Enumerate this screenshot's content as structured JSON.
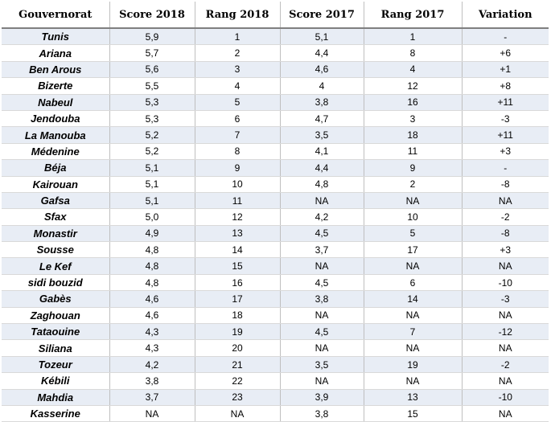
{
  "table": {
    "headers": [
      "Gouvernorat",
      "Score 2018",
      "Rang 2018",
      "Score 2017",
      "Rang 2017",
      "Variation"
    ],
    "rows": [
      [
        "Tunis",
        "5,9",
        "1",
        "5,1",
        "1",
        "-"
      ],
      [
        "Ariana",
        "5,7",
        "2",
        "4,4",
        "8",
        "+6"
      ],
      [
        "Ben Arous",
        "5,6",
        "3",
        "4,6",
        "4",
        "+1"
      ],
      [
        "Bizerte",
        "5,5",
        "4",
        "4",
        "12",
        "+8"
      ],
      [
        "Nabeul",
        "5,3",
        "5",
        "3,8",
        "16",
        "+11"
      ],
      [
        "Jendouba",
        "5,3",
        "6",
        "4,7",
        "3",
        "-3"
      ],
      [
        "La Manouba",
        "5,2",
        "7",
        "3,5",
        "18",
        "+11"
      ],
      [
        "Médenine",
        "5,2",
        "8",
        "4,1",
        "11",
        "+3"
      ],
      [
        "Béja",
        "5,1",
        "9",
        "4,4",
        "9",
        "-"
      ],
      [
        "Kairouan",
        "5,1",
        "10",
        "4,8",
        "2",
        "-8"
      ],
      [
        "Gafsa",
        "5,1",
        "11",
        "NA",
        "NA",
        "NA"
      ],
      [
        "Sfax",
        "5,0",
        "12",
        "4,2",
        "10",
        "-2"
      ],
      [
        "Monastir",
        "4,9",
        "13",
        "4,5",
        "5",
        "-8"
      ],
      [
        "Sousse",
        "4,8",
        "14",
        "3,7",
        "17",
        "+3"
      ],
      [
        "Le Kef",
        "4,8",
        "15",
        "NA",
        "NA",
        "NA"
      ],
      [
        "sidi bouzid",
        "4,8",
        "16",
        "4,5",
        "6",
        "-10"
      ],
      [
        "Gabès",
        "4,6",
        "17",
        "3,8",
        "14",
        "-3"
      ],
      [
        "Zaghouan",
        "4,6",
        "18",
        "NA",
        "NA",
        "NA"
      ],
      [
        "Tataouine",
        "4,3",
        "19",
        "4,5",
        "7",
        "-12"
      ],
      [
        "Siliana",
        "4,3",
        "20",
        "NA",
        "NA",
        "NA"
      ],
      [
        "Tozeur",
        "4,2",
        "21",
        "3,5",
        "19",
        "-2"
      ],
      [
        "Kébili",
        "3,8",
        "22",
        "NA",
        "NA",
        "NA"
      ],
      [
        "Mahdia",
        "3,7",
        "23",
        "3,9",
        "13",
        "-10"
      ],
      [
        "Kasserine",
        "NA",
        "NA",
        "3,8",
        "15",
        "NA"
      ]
    ]
  }
}
